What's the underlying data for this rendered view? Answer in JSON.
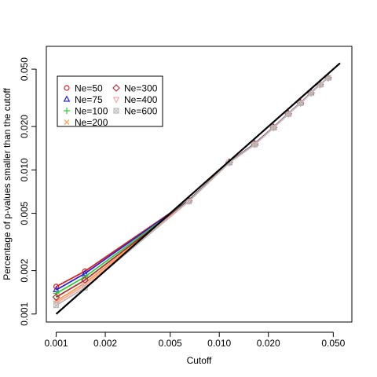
{
  "chart_data": {
    "type": "line",
    "xlabel": "Cutoff",
    "ylabel": "Percentage of p-values smaller than the cutoff",
    "x_scale": "log",
    "y_scale": "log",
    "xlim": [
      0.00087,
      0.065
    ],
    "ylim": [
      0.00088,
      0.072
    ],
    "x_ticks": [
      0.001,
      0.002,
      0.005,
      0.01,
      0.02,
      0.05
    ],
    "x_tick_labels": [
      "0.001",
      "0.002",
      "0.005",
      "0.010",
      "0.020",
      "0.050"
    ],
    "y_ticks": [
      0.001,
      0.002,
      0.005,
      0.01,
      0.02,
      0.05
    ],
    "y_tick_labels": [
      "0.001",
      "0.002",
      "0.005",
      "0.010",
      "0.020",
      "0.050"
    ],
    "grid": false,
    "legend_placement": "top-left",
    "x": [
      0.001,
      0.0015,
      0.0065,
      0.0115,
      0.0165,
      0.0215,
      0.0265,
      0.0315,
      0.0365,
      0.0415,
      0.0465
    ],
    "series": [
      {
        "name": "Ne=50",
        "color": "#e31a1c",
        "marker": "circle",
        "values": [
          0.00155,
          0.00198,
          0.00615,
          0.0113,
          0.0152,
          0.0198,
          0.0246,
          0.0292,
          0.0343,
          0.0392,
          0.0437
        ]
      },
      {
        "name": "Ne=75",
        "color": "#2222dd",
        "marker": "triangle",
        "values": [
          0.00147,
          0.00191,
          0.00615,
          0.0113,
          0.0152,
          0.0198,
          0.0246,
          0.0292,
          0.0343,
          0.0392,
          0.0437
        ]
      },
      {
        "name": "Ne=100",
        "color": "#33cc33",
        "marker": "plus",
        "values": [
          0.00139,
          0.00181,
          0.00612,
          0.0113,
          0.0151,
          0.0197,
          0.0245,
          0.0291,
          0.0342,
          0.0391,
          0.0436
        ]
      },
      {
        "name": "Ne=200",
        "color": "#ff9a3c",
        "marker": "cross",
        "values": [
          0.00123,
          0.00164,
          0.00608,
          0.0112,
          0.0151,
          0.0197,
          0.0245,
          0.0291,
          0.0342,
          0.0391,
          0.0436
        ]
      },
      {
        "name": "Ne=300",
        "color": "#b0303a",
        "marker": "diamond",
        "values": [
          0.00131,
          0.00172,
          0.0061,
          0.0113,
          0.0151,
          0.0197,
          0.0245,
          0.0291,
          0.0342,
          0.0391,
          0.0436
        ]
      },
      {
        "name": "Ne=400",
        "color": "#f4a8a8",
        "marker": "triangle-down",
        "values": [
          0.00119,
          0.00158,
          0.00606,
          0.0112,
          0.015,
          0.0196,
          0.0244,
          0.029,
          0.0341,
          0.039,
          0.0435
        ]
      },
      {
        "name": "Ne=600",
        "color": "#bbbbbb",
        "marker": "square-x",
        "values": [
          0.00115,
          0.00152,
          0.00604,
          0.0112,
          0.015,
          0.0196,
          0.0244,
          0.029,
          0.0341,
          0.039,
          0.0435
        ]
      }
    ],
    "reference_line": {
      "color": "#000000",
      "x": [
        0.001,
        0.055
      ],
      "y": [
        0.001,
        0.055
      ]
    }
  }
}
